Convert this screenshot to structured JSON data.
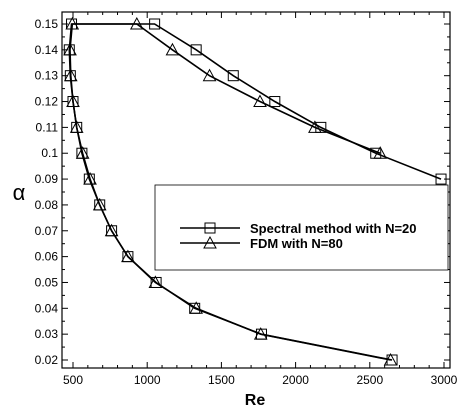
{
  "chart_data": {
    "type": "line",
    "title": "",
    "xlabel": "Re",
    "ylabel": "α",
    "xlim": [
      400,
      3000
    ],
    "ylim": [
      0.015,
      0.155
    ],
    "xticks": [
      500,
      1000,
      1500,
      2000,
      2500,
      3000
    ],
    "yticks": [
      0.02,
      0.03,
      0.04,
      0.05,
      0.06,
      0.07,
      0.08,
      0.09,
      0.1,
      0.11,
      0.12,
      0.13,
      0.14,
      0.15
    ],
    "ytick_labels": [
      "0.02",
      "0.03",
      "0.04",
      "0.05",
      "0.06",
      "0.07",
      "0.08",
      "0.09",
      "0.1",
      "0.11",
      "0.12",
      "0.13",
      "0.14",
      "0.15"
    ],
    "xtick_labels": [
      "500",
      "1000",
      "1500",
      "2000",
      "2500",
      "3000"
    ],
    "grid": false,
    "legend_position": "center-right",
    "series": [
      {
        "name": "Spectral method with N=20",
        "marker": "square",
        "color": "#000000",
        "points": [
          [
            2650,
            0.02
          ],
          [
            1770,
            0.03
          ],
          [
            1320,
            0.04
          ],
          [
            1060,
            0.05
          ],
          [
            870,
            0.06
          ],
          [
            760,
            0.07
          ],
          [
            680,
            0.08
          ],
          [
            610,
            0.09
          ],
          [
            560,
            0.1
          ],
          [
            525,
            0.11
          ],
          [
            500,
            0.12
          ],
          [
            482,
            0.13
          ],
          [
            475,
            0.14
          ],
          [
            490,
            0.15
          ],
          [
            1050,
            0.15
          ],
          [
            1330,
            0.14
          ],
          [
            1580,
            0.13
          ],
          [
            1860,
            0.12
          ],
          [
            2170,
            0.11
          ],
          [
            2540,
            0.1
          ],
          [
            2980,
            0.09
          ]
        ]
      },
      {
        "name": "FDM with N=80",
        "marker": "triangle",
        "color": "#000000",
        "points": [
          [
            2640,
            0.02
          ],
          [
            1765,
            0.03
          ],
          [
            1330,
            0.04
          ],
          [
            1055,
            0.05
          ],
          [
            870,
            0.06
          ],
          [
            760,
            0.07
          ],
          [
            680,
            0.08
          ],
          [
            615,
            0.09
          ],
          [
            565,
            0.1
          ],
          [
            525,
            0.11
          ],
          [
            500,
            0.12
          ],
          [
            485,
            0.13
          ],
          [
            480,
            0.14
          ],
          [
            495,
            0.15
          ],
          [
            930,
            0.15
          ],
          [
            1170,
            0.14
          ],
          [
            1420,
            0.13
          ],
          [
            1760,
            0.12
          ],
          [
            2130,
            0.11
          ],
          [
            2570,
            0.1
          ]
        ]
      }
    ]
  }
}
